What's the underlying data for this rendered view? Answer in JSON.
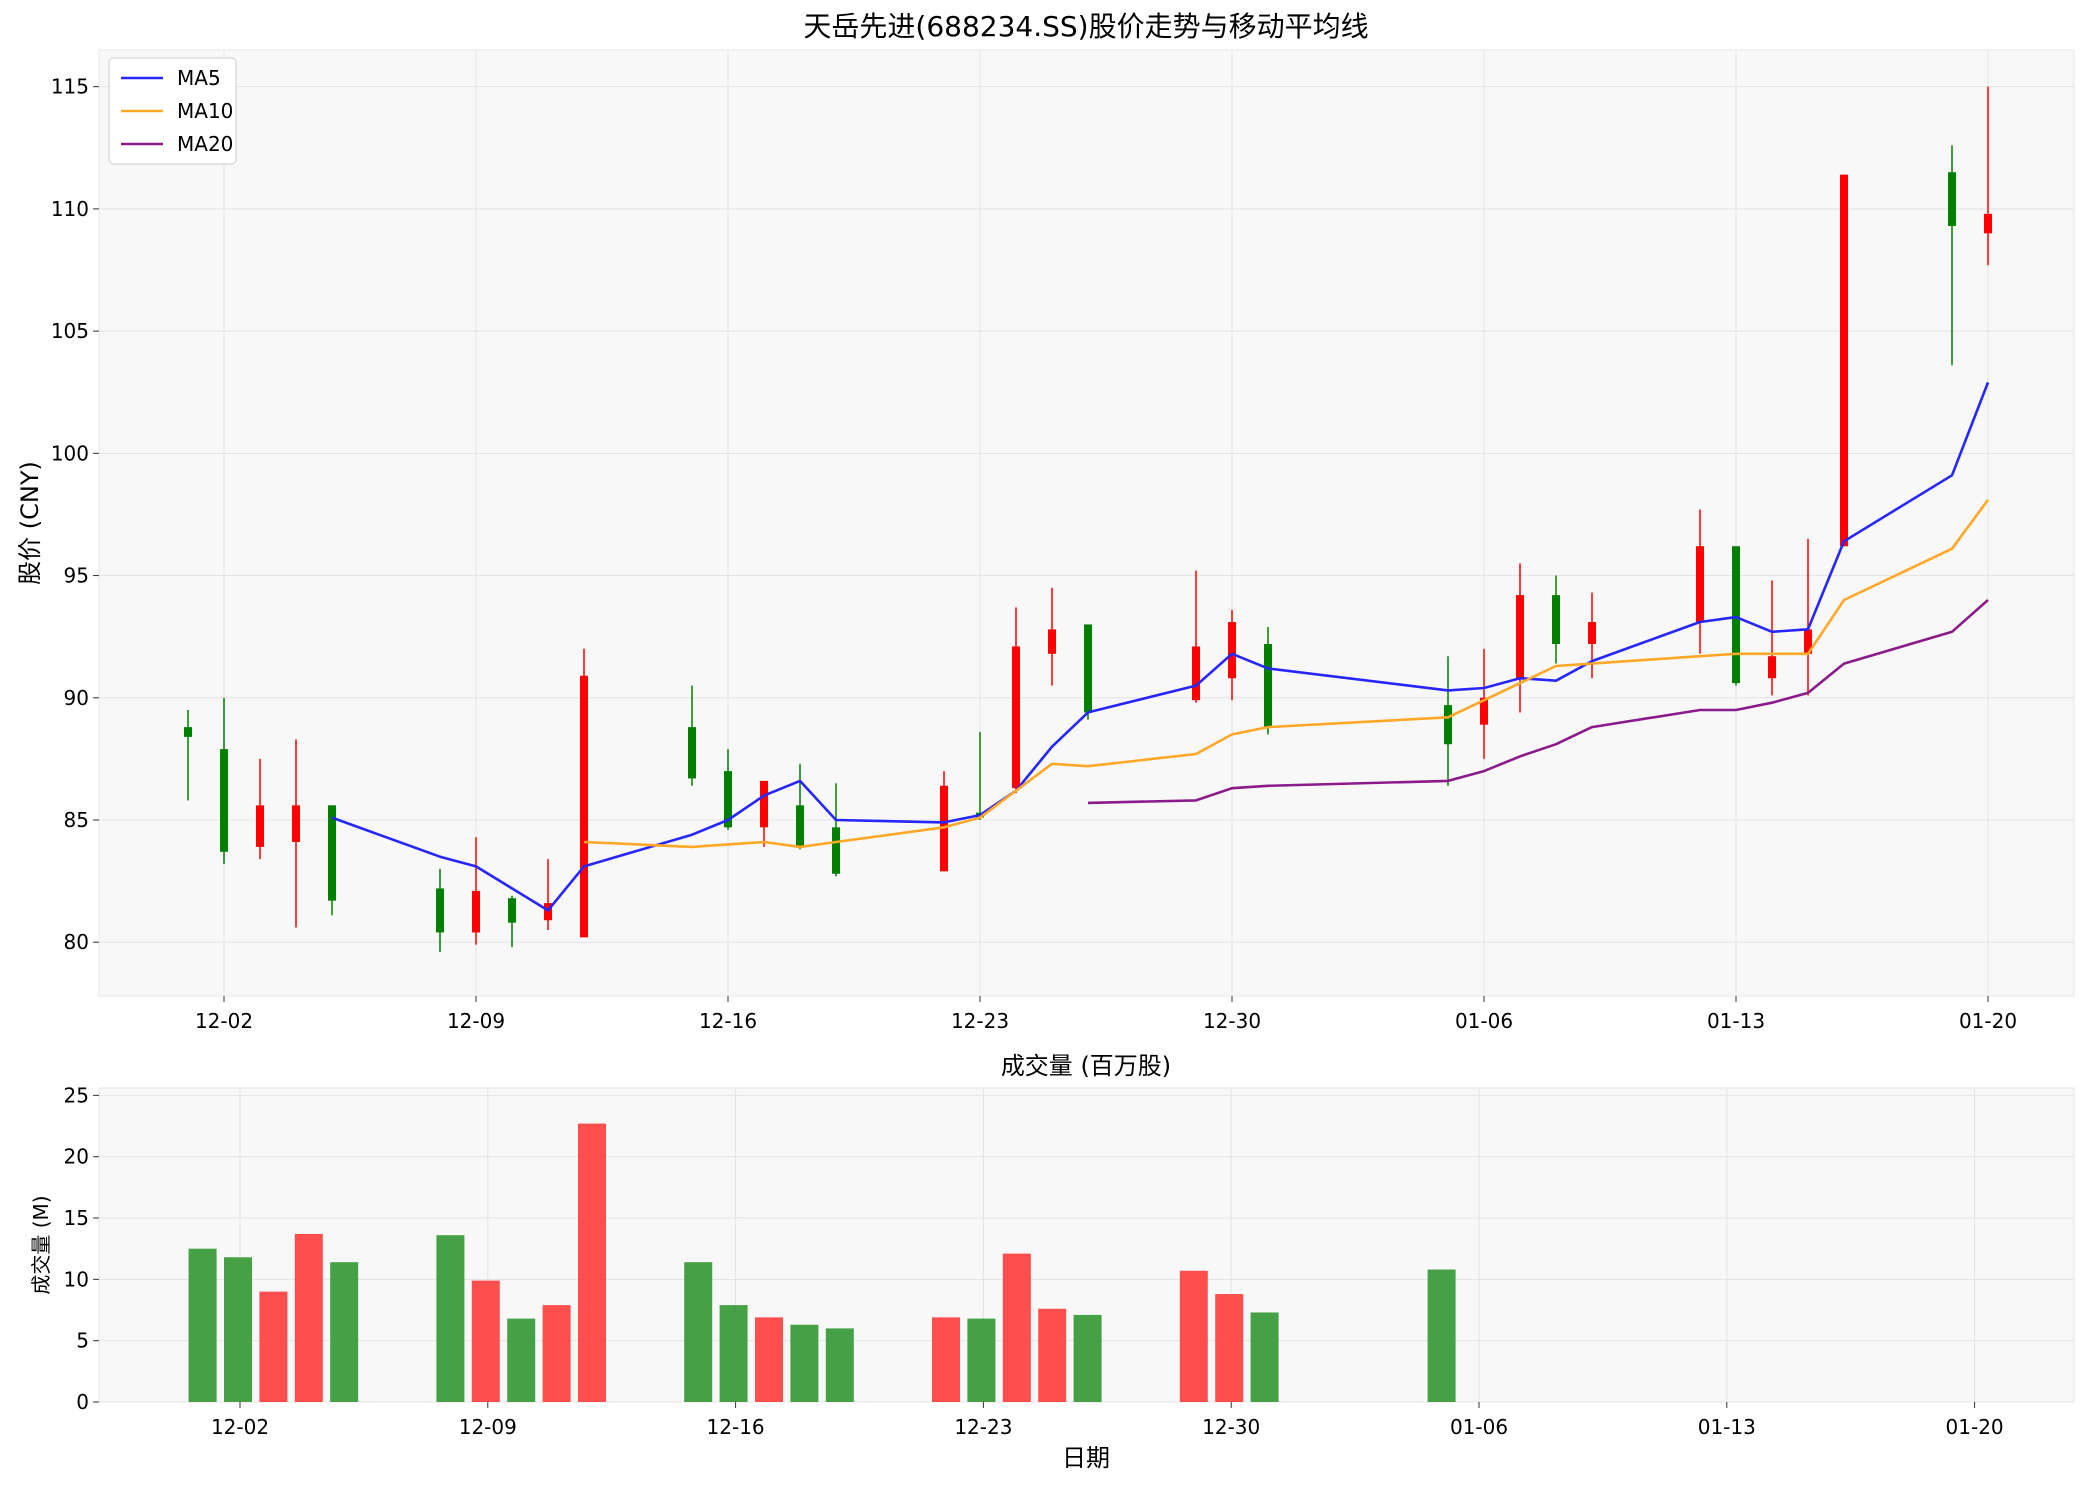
{
  "chart_data": [
    {
      "type": "candlestick",
      "title": "天岳先进(688234.SS)股价走势与移动平均线",
      "xlabel": "",
      "ylabel": "股价 (CNY)",
      "ylim": [
        77.8,
        116.5
      ],
      "yticks": [
        80,
        85,
        90,
        95,
        100,
        105,
        110,
        115
      ],
      "xticks": [
        "12-02",
        "12-09",
        "12-16",
        "12-23",
        "12-30",
        "01-06",
        "01-13",
        "01-20"
      ],
      "grid": true,
      "legend_position": "top-left",
      "colors": {
        "up": "#ff0000",
        "down": "#008000",
        "ma5": "#2626ff",
        "ma10": "#ffa726",
        "ma20": "#8b1a8b",
        "panel_bg": "#f8f8f8",
        "grid": "#e5e5e5"
      },
      "candles": [
        {
          "date": "2024-12-01",
          "open": 88.8,
          "close": 88.4,
          "high": 89.5,
          "low": 85.8
        },
        {
          "date": "2024-12-02",
          "open": 87.9,
          "close": 83.7,
          "high": 90.0,
          "low": 83.2
        },
        {
          "date": "2024-12-03",
          "open": 83.9,
          "close": 85.6,
          "high": 87.5,
          "low": 83.4
        },
        {
          "date": "2024-12-04",
          "open": 84.1,
          "close": 85.6,
          "high": 88.3,
          "low": 80.6
        },
        {
          "date": "2024-12-05",
          "open": 85.6,
          "close": 81.7,
          "high": 85.6,
          "low": 81.1
        },
        {
          "date": "2024-12-08",
          "open": 82.2,
          "close": 80.4,
          "high": 83.0,
          "low": 79.6
        },
        {
          "date": "2024-12-09",
          "open": 80.4,
          "close": 82.1,
          "high": 84.3,
          "low": 79.9
        },
        {
          "date": "2024-12-10",
          "open": 81.8,
          "close": 80.8,
          "high": 81.9,
          "low": 79.8
        },
        {
          "date": "2024-12-11",
          "open": 80.9,
          "close": 81.6,
          "high": 83.4,
          "low": 80.5
        },
        {
          "date": "2024-12-12",
          "open": 80.2,
          "close": 90.9,
          "high": 92.0,
          "low": 80.2
        },
        {
          "date": "2024-12-15",
          "open": 88.8,
          "close": 86.7,
          "high": 90.5,
          "low": 86.4
        },
        {
          "date": "2024-12-16",
          "open": 87.0,
          "close": 84.7,
          "high": 87.9,
          "low": 84.6
        },
        {
          "date": "2024-12-17",
          "open": 84.7,
          "close": 86.6,
          "high": 86.6,
          "low": 83.9
        },
        {
          "date": "2024-12-18",
          "open": 85.6,
          "close": 83.9,
          "high": 87.3,
          "low": 83.8
        },
        {
          "date": "2024-12-19",
          "open": 84.7,
          "close": 82.8,
          "high": 86.5,
          "low": 82.7
        },
        {
          "date": "2024-12-22",
          "open": 82.9,
          "close": 86.4,
          "high": 87.0,
          "low": 82.9
        },
        {
          "date": "2024-12-23",
          "open": 85.3,
          "close": 85.1,
          "high": 88.6,
          "low": 85.0
        },
        {
          "date": "2024-12-24",
          "open": 86.3,
          "close": 92.1,
          "high": 93.7,
          "low": 86.1
        },
        {
          "date": "2024-12-25",
          "open": 91.8,
          "close": 92.8,
          "high": 94.5,
          "low": 90.5
        },
        {
          "date": "2024-12-26",
          "open": 93.0,
          "close": 89.4,
          "high": 93.0,
          "low": 89.1
        },
        {
          "date": "2024-12-29",
          "open": 89.9,
          "close": 92.1,
          "high": 95.2,
          "low": 89.8
        },
        {
          "date": "2024-12-30",
          "open": 90.8,
          "close": 93.1,
          "high": 93.6,
          "low": 89.9
        },
        {
          "date": "2024-12-31",
          "open": 92.2,
          "close": 88.8,
          "high": 92.9,
          "low": 88.5
        },
        {
          "date": "2025-01-05",
          "open": 89.7,
          "close": 88.1,
          "high": 91.7,
          "low": 86.4
        },
        {
          "date": "2025-01-06",
          "open": 88.9,
          "close": 90.0,
          "high": 92.0,
          "low": 87.5
        },
        {
          "date": "2025-01-07",
          "open": 90.8,
          "close": 94.2,
          "high": 95.5,
          "low": 89.4
        },
        {
          "date": "2025-01-08",
          "open": 94.2,
          "close": 92.2,
          "high": 95.0,
          "low": 91.4
        },
        {
          "date": "2025-01-09",
          "open": 92.2,
          "close": 93.1,
          "high": 94.3,
          "low": 90.8
        },
        {
          "date": "2025-01-12",
          "open": 93.1,
          "close": 96.2,
          "high": 97.7,
          "low": 91.8
        },
        {
          "date": "2025-01-13",
          "open": 96.2,
          "close": 90.6,
          "high": 96.2,
          "low": 90.5
        },
        {
          "date": "2025-01-14",
          "open": 90.8,
          "close": 91.7,
          "high": 94.8,
          "low": 90.1
        },
        {
          "date": "2025-01-15",
          "open": 91.8,
          "close": 92.8,
          "high": 96.5,
          "low": 90.1
        },
        {
          "date": "2025-01-16",
          "open": 96.2,
          "close": 111.4,
          "high": 111.4,
          "low": 96.2
        },
        {
          "date": "2025-01-19",
          "open": 111.5,
          "close": 109.3,
          "high": 112.6,
          "low": 103.6
        },
        {
          "date": "2025-01-20",
          "open": 109.0,
          "close": 109.8,
          "high": 115.0,
          "low": 107.7
        }
      ],
      "series": [
        {
          "name": "MA5",
          "points": [
            [
              "2024-12-05",
              85.1
            ],
            [
              "2024-12-08",
              83.5
            ],
            [
              "2024-12-09",
              83.1
            ],
            [
              "2024-12-11",
              81.3
            ],
            [
              "2024-12-12",
              83.1
            ],
            [
              "2024-12-15",
              84.4
            ],
            [
              "2024-12-16",
              85.0
            ],
            [
              "2024-12-17",
              86.0
            ],
            [
              "2024-12-18",
              86.6
            ],
            [
              "2024-12-19",
              85.0
            ],
            [
              "2024-12-22",
              84.9
            ],
            [
              "2024-12-23",
              85.2
            ],
            [
              "2024-12-24",
              86.2
            ],
            [
              "2024-12-25",
              88.0
            ],
            [
              "2024-12-26",
              89.4
            ],
            [
              "2024-12-29",
              90.5
            ],
            [
              "2024-12-30",
              91.8
            ],
            [
              "2024-12-31",
              91.2
            ],
            [
              "2025-01-05",
              90.3
            ],
            [
              "2025-01-06",
              90.4
            ],
            [
              "2025-01-07",
              90.8
            ],
            [
              "2025-01-08",
              90.7
            ],
            [
              "2025-01-09",
              91.5
            ],
            [
              "2025-01-12",
              93.1
            ],
            [
              "2025-01-13",
              93.3
            ],
            [
              "2025-01-14",
              92.7
            ],
            [
              "2025-01-15",
              92.8
            ],
            [
              "2025-01-16",
              96.4
            ],
            [
              "2025-01-19",
              99.1
            ],
            [
              "2025-01-20",
              102.9
            ]
          ]
        },
        {
          "name": "MA10",
          "points": [
            [
              "2024-12-12",
              84.1
            ],
            [
              "2024-12-15",
              83.9
            ],
            [
              "2024-12-16",
              84.0
            ],
            [
              "2024-12-17",
              84.1
            ],
            [
              "2024-12-18",
              83.9
            ],
            [
              "2024-12-19",
              84.1
            ],
            [
              "2024-12-22",
              84.7
            ],
            [
              "2024-12-23",
              85.1
            ],
            [
              "2024-12-24",
              86.2
            ],
            [
              "2024-12-25",
              87.3
            ],
            [
              "2024-12-26",
              87.2
            ],
            [
              "2024-12-29",
              87.7
            ],
            [
              "2024-12-30",
              88.5
            ],
            [
              "2024-12-31",
              88.8
            ],
            [
              "2025-01-05",
              89.2
            ],
            [
              "2025-01-06",
              89.9
            ],
            [
              "2025-01-07",
              90.6
            ],
            [
              "2025-01-08",
              91.3
            ],
            [
              "2025-01-09",
              91.4
            ],
            [
              "2025-01-12",
              91.7
            ],
            [
              "2025-01-13",
              91.8
            ],
            [
              "2025-01-14",
              91.8
            ],
            [
              "2025-01-15",
              91.8
            ],
            [
              "2025-01-16",
              94.0
            ],
            [
              "2025-01-19",
              96.1
            ],
            [
              "2025-01-20",
              98.1
            ]
          ]
        },
        {
          "name": "MA20",
          "points": [
            [
              "2024-12-26",
              85.7
            ],
            [
              "2024-12-29",
              85.8
            ],
            [
              "2024-12-30",
              86.3
            ],
            [
              "2024-12-31",
              86.4
            ],
            [
              "2025-01-05",
              86.6
            ],
            [
              "2025-01-06",
              87.0
            ],
            [
              "2025-01-07",
              87.6
            ],
            [
              "2025-01-08",
              88.1
            ],
            [
              "2025-01-09",
              88.8
            ],
            [
              "2025-01-12",
              89.5
            ],
            [
              "2025-01-13",
              89.5
            ],
            [
              "2025-01-14",
              89.8
            ],
            [
              "2025-01-15",
              90.2
            ],
            [
              "2025-01-16",
              91.4
            ],
            [
              "2025-01-19",
              92.7
            ],
            [
              "2025-01-20",
              94.0
            ]
          ]
        }
      ],
      "legend": [
        "MA5",
        "MA10",
        "MA20"
      ]
    },
    {
      "type": "bar",
      "title": "成交量 (百万股)",
      "xlabel": "日期",
      "ylabel": "成交量 (M)",
      "ylim": [
        0,
        25.6
      ],
      "yticks": [
        0,
        5,
        10,
        15,
        20,
        25
      ],
      "xticks": [
        "12-02",
        "12-09",
        "12-16",
        "12-23",
        "12-30",
        "01-06",
        "01-13",
        "01-20"
      ],
      "grid": true,
      "colors": {
        "green": "#3c9c3c",
        "red": "#ff4444"
      },
      "bars": [
        {
          "date": "2024-12-01",
          "value": 12.5,
          "color": "green"
        },
        {
          "date": "2024-12-02",
          "value": 11.8,
          "color": "green"
        },
        {
          "date": "2024-12-03",
          "value": 9.0,
          "color": "red"
        },
        {
          "date": "2024-12-04",
          "value": 13.7,
          "color": "red"
        },
        {
          "date": "2024-12-05",
          "value": 11.4,
          "color": "green"
        },
        {
          "date": "2024-12-08",
          "value": 13.6,
          "color": "green"
        },
        {
          "date": "2024-12-09",
          "value": 9.9,
          "color": "red"
        },
        {
          "date": "2024-12-10",
          "value": 6.8,
          "color": "green"
        },
        {
          "date": "2024-12-11",
          "value": 7.9,
          "color": "red"
        },
        {
          "date": "2024-12-12",
          "value": 22.7,
          "color": "red"
        },
        {
          "date": "2024-12-15",
          "value": 11.4,
          "color": "green"
        },
        {
          "date": "2024-12-16",
          "value": 7.9,
          "color": "green"
        },
        {
          "date": "2024-12-17",
          "value": 6.9,
          "color": "red"
        },
        {
          "date": "2024-12-18",
          "value": 6.3,
          "color": "green"
        },
        {
          "date": "2024-12-19",
          "value": 6.0,
          "color": "green"
        },
        {
          "date": "2024-12-22",
          "value": 6.9,
          "color": "red"
        },
        {
          "date": "2024-12-23",
          "value": 6.8,
          "color": "green"
        },
        {
          "date": "2024-12-24",
          "value": 12.1,
          "color": "red"
        },
        {
          "date": "2024-12-25",
          "value": 7.6,
          "color": "red"
        },
        {
          "date": "2024-12-26",
          "value": 7.1,
          "color": "green"
        },
        {
          "date": "2024-12-29",
          "value": 10.7,
          "color": "red"
        },
        {
          "date": "2024-12-30",
          "value": 8.8,
          "color": "red"
        },
        {
          "date": "2024-12-31",
          "value": 7.3,
          "color": "green"
        },
        {
          "date": "2025-01-05",
          "value": 10.8,
          "color": "green"
        }
      ]
    }
  ]
}
